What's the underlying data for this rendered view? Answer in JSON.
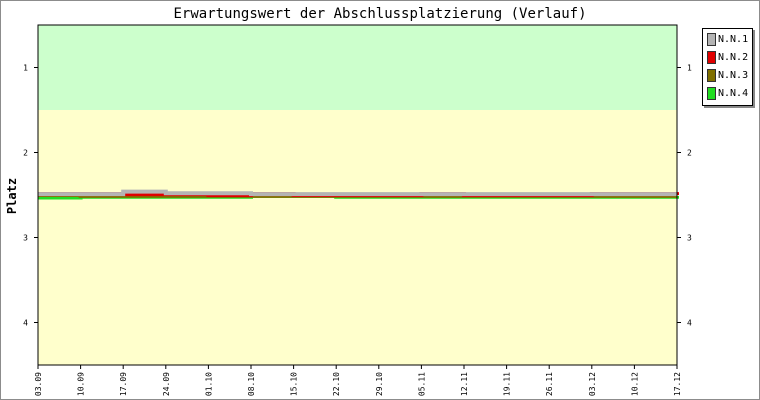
{
  "chart_data": {
    "type": "line",
    "title": "Erwartungswert der Abschlussplatzierung (Verlauf)",
    "ylabel": "Platz",
    "xlabel": "",
    "y_ticks": [
      "1",
      "2",
      "3",
      "4"
    ],
    "ylim": [
      0.5,
      4.5
    ],
    "y_inverted": true,
    "categories": [
      "03.09",
      "10.09",
      "17.09",
      "24.09",
      "01.10",
      "08.10",
      "15.10",
      "22.10",
      "29.10",
      "05.11",
      "12.11",
      "19.11",
      "26.11",
      "03.12",
      "10.12",
      "17.12"
    ],
    "bands": [
      {
        "from": 0.5,
        "to": 1.5,
        "color": "#ccffcc"
      },
      {
        "from": 1.5,
        "to": 4.5,
        "color": "#ffffcc"
      }
    ],
    "grid": false,
    "legend_position": "top-right, outside plot",
    "series": [
      {
        "name": "N.N.1",
        "color": "#b4b4b4",
        "values": [
          2.49,
          2.49,
          2.46,
          2.48,
          2.48,
          2.49,
          2.49,
          2.49,
          2.49,
          2.49,
          2.49,
          2.49,
          2.49,
          2.49,
          2.49,
          2.49
        ]
      },
      {
        "name": "N.N.2",
        "color": "#e00000",
        "values": [
          2.49,
          2.49,
          2.49,
          2.49,
          2.5,
          2.49,
          2.5,
          2.5,
          2.5,
          2.49,
          2.5,
          2.5,
          2.5,
          2.49,
          2.49,
          2.5
        ]
      },
      {
        "name": "N.N.3",
        "color": "#807000",
        "values": [
          2.5,
          2.51,
          2.51,
          2.51,
          2.51,
          2.51,
          2.51,
          2.51,
          2.51,
          2.51,
          2.51,
          2.51,
          2.51,
          2.51,
          2.51,
          2.51
        ]
      },
      {
        "name": "N.N.4",
        "color": "#22dd22",
        "values": [
          2.53,
          2.52,
          2.52,
          2.52,
          2.52,
          2.51,
          2.51,
          2.52,
          2.52,
          2.52,
          2.52,
          2.52,
          2.52,
          2.52,
          2.52,
          2.51
        ]
      }
    ]
  }
}
